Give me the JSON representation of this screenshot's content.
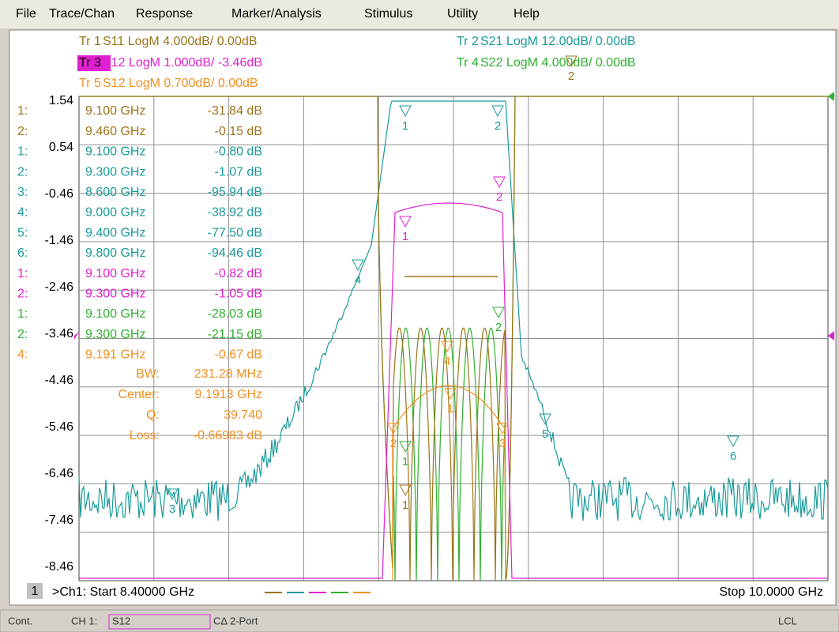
{
  "menu": [
    "File",
    "Trace/Chan",
    "Response",
    "Marker/Analysis",
    "Stimulus",
    "Utility",
    "Help"
  ],
  "traces": [
    {
      "label": "Tr 1",
      "desc": "S11 LogM 4.000dB/  0.00dB",
      "color": "#9c7418"
    },
    {
      "label": "Tr 3",
      "desc": "S12 LogM 1.000dB/ -3.46dB",
      "color": "#e020d0"
    },
    {
      "label": "Tr 5",
      "desc": "S12 LogM 0.700dB/  0.00dB",
      "color": "#f09020"
    },
    {
      "label": "Tr 2",
      "desc": "S21 LogM 12.00dB/  0.00dB",
      "color": "#1a9a9a"
    },
    {
      "label": "Tr 4",
      "desc": "S22 LogM 4.000dB/  0.00dB",
      "color": "#30b030"
    }
  ],
  "scale": [
    "1.54",
    "0.54",
    "-0.46",
    "-1.46",
    "-2.46",
    "-3.46",
    "-4.46",
    "-5.46",
    "-6.46",
    "-7.46",
    "-8.46"
  ],
  "markers": [
    {
      "id": "1:",
      "freq": "9.100 GHz",
      "value": "-31.84 dB",
      "color": "#9c7418"
    },
    {
      "id": "2:",
      "freq": "9.460 GHz",
      "value": "-0.15 dB",
      "color": "#9c7418"
    },
    {
      "id": "1:",
      "freq": "9.100 GHz",
      "value": "-0.80 dB",
      "color": "#1a9a9a"
    },
    {
      "id": "2:",
      "freq": "9.300 GHz",
      "value": "-1.07 dB",
      "color": "#1a9a9a"
    },
    {
      "id": "3:",
      "freq": "8.600 GHz",
      "value": "-95.94 dB",
      "color": "#1a9a9a"
    },
    {
      "id": "4:",
      "freq": "9.000 GHz",
      "value": "-38.92 dB",
      "color": "#1a9a9a"
    },
    {
      "id": "5:",
      "freq": "9.400 GHz",
      "value": "-77.50 dB",
      "color": "#1a9a9a"
    },
    {
      "id": "6:",
      "freq": "9.800 GHz",
      "value": "-94.46 dB",
      "color": "#1a9a9a"
    },
    {
      "id": "1:",
      "freq": "9.100 GHz",
      "value": "-0.82 dB",
      "color": "#e020d0"
    },
    {
      "id": "2:",
      "freq": "9.300 GHz",
      "value": "-1.05 dB",
      "color": "#e020d0"
    },
    {
      "id": "1:",
      "freq": "9.100 GHz",
      "value": "-28.03 dB",
      "color": "#30b030"
    },
    {
      "id": "2:",
      "freq": "9.300 GHz",
      "value": "-21.15 dB",
      "color": "#30b030"
    },
    {
      "id": "4:",
      "freq": "9.191 GHz",
      "value": "-0.67 dB",
      "color": "#f09020"
    }
  ],
  "stats": [
    {
      "name": "BW:",
      "value": "231.28 MHz"
    },
    {
      "name": "Center:",
      "value": "9.1913 GHz"
    },
    {
      "name": "Q:",
      "value": "39.740"
    },
    {
      "name": "Loss:",
      "value": "-0.66983 dB"
    }
  ],
  "stats_color": "#f09020",
  "flags": [
    {
      "text": "1",
      "color": "#1a9a9a"
    },
    {
      "text": "2",
      "color": "#1a9a9a"
    },
    {
      "text": "4",
      "color": "#1a9a9a"
    },
    {
      "text": "5",
      "color": "#1a9a9a"
    },
    {
      "text": "6",
      "color": "#1a9a9a"
    },
    {
      "text": "3",
      "color": "#1a9a9a"
    },
    {
      "text": "2",
      "color": "#9c7418"
    },
    {
      "text": "1",
      "color": "#e020d0"
    },
    {
      "text": "2",
      "color": "#e020d0"
    },
    {
      "text": "2",
      "color": "#30b030"
    },
    {
      "text": "1",
      "color": "#30b030"
    },
    {
      "text": "1",
      "color": "#9c7418"
    },
    {
      "text": "4",
      "color": "#f09020"
    },
    {
      "text": "1",
      "color": "#f09020"
    },
    {
      "text": "2",
      "color": "#f09020"
    },
    {
      "text": "3",
      "color": "#f09020"
    }
  ],
  "footer": {
    "channel": "1",
    "start": ">Ch1: Start  8.40000 GHz",
    "stop": "Stop  10.0000 GHz"
  },
  "status": {
    "mode": "Cont.",
    "channel": "CH 1:",
    "param": "S12",
    "port": "CΔ 2-Port",
    "remote": "LCL"
  }
}
